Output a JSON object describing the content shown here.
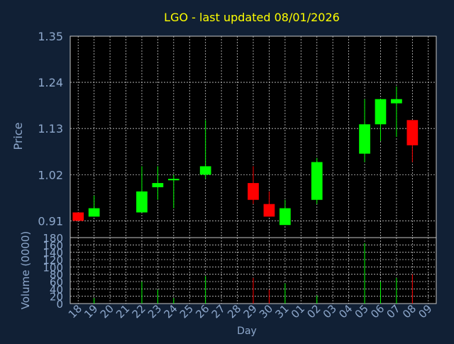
{
  "colors": {
    "background": "#112035",
    "panel": "#000000",
    "title": "#ffff00",
    "axis_text": "#8ea8cc",
    "up": "#00ff00",
    "down": "#ff0000",
    "grid": "#c8c8c8"
  },
  "chart_data": {
    "type": "candlestick",
    "title": "LGO - last updated 08/01/2026",
    "xlabel": "Day",
    "price_panel": {
      "ylabel": "Price",
      "ylim": [
        0.87,
        1.35
      ],
      "yticks": [
        "0.91",
        "1.02",
        "1.13",
        "1.24",
        "1.35"
      ],
      "grid": true
    },
    "volume_panel": {
      "ylabel": "Volume (0000)",
      "ylim": [
        0,
        180
      ],
      "yticks": [
        "0",
        "20",
        "40",
        "60",
        "80",
        "100",
        "120",
        "140",
        "160",
        "180"
      ],
      "grid": true
    },
    "categories": [
      "18",
      "19",
      "20",
      "21",
      "22",
      "23",
      "24",
      "25",
      "26",
      "27",
      "28",
      "29",
      "30",
      "31",
      "01",
      "02",
      "03",
      "04",
      "05",
      "06",
      "07",
      "08",
      "09"
    ],
    "candles": [
      {
        "day": "18",
        "open": 0.93,
        "high": 0.93,
        "low": 0.91,
        "close": 0.91,
        "volume": 0
      },
      {
        "day": "19",
        "open": 0.92,
        "high": 0.97,
        "low": 0.92,
        "close": 0.94,
        "volume": 15
      },
      {
        "day": "22",
        "open": 0.93,
        "high": 1.04,
        "low": 0.93,
        "close": 0.98,
        "volume": 60
      },
      {
        "day": "23",
        "open": 0.99,
        "high": 1.04,
        "low": 0.96,
        "close": 1.0,
        "volume": 38
      },
      {
        "day": "24",
        "open": 1.01,
        "high": 1.02,
        "low": 0.94,
        "close": 1.01,
        "volume": 15
      },
      {
        "day": "26",
        "open": 1.02,
        "high": 1.15,
        "low": 1.01,
        "close": 1.04,
        "volume": 75
      },
      {
        "day": "29",
        "open": 1.0,
        "high": 1.04,
        "low": 0.95,
        "close": 0.96,
        "volume": 70
      },
      {
        "day": "30",
        "open": 0.95,
        "high": 0.98,
        "low": 0.92,
        "close": 0.92,
        "volume": 38
      },
      {
        "day": "31",
        "open": 0.9,
        "high": 0.96,
        "low": 0.9,
        "close": 0.94,
        "volume": 55
      },
      {
        "day": "02",
        "open": 0.96,
        "high": 1.06,
        "low": 0.95,
        "close": 1.05,
        "volume": 22
      },
      {
        "day": "05",
        "open": 1.07,
        "high": 1.2,
        "low": 1.05,
        "close": 1.14,
        "volume": 165
      },
      {
        "day": "06",
        "open": 1.14,
        "high": 1.2,
        "low": 1.1,
        "close": 1.2,
        "volume": 60
      },
      {
        "day": "07",
        "open": 1.19,
        "high": 1.23,
        "low": 1.11,
        "close": 1.2,
        "volume": 70
      },
      {
        "day": "08",
        "open": 1.15,
        "high": 1.15,
        "low": 1.05,
        "close": 1.09,
        "volume": 80
      }
    ]
  }
}
